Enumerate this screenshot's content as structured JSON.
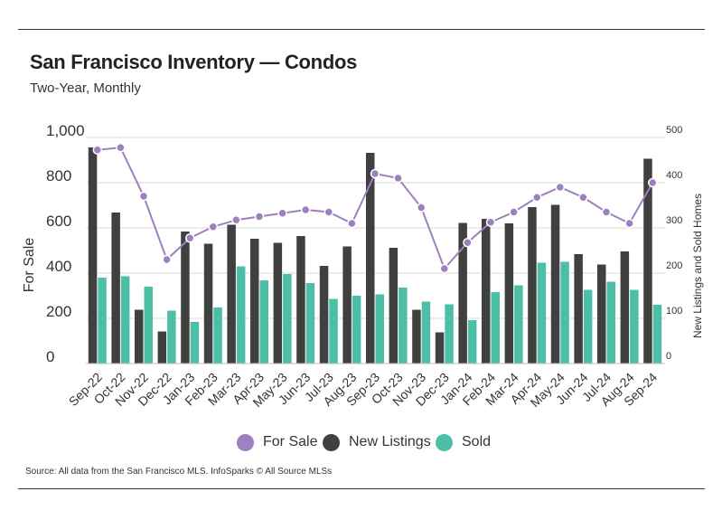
{
  "title": "San Francisco Inventory — Condos",
  "subtitle": "Two-Year, Monthly",
  "source": "Source:  All data from the San Francisco MLS. InfoSparks © All Source MLSs",
  "colors": {
    "for_sale": "#9d80bd",
    "new_listings": "#404040",
    "sold": "#4cbfa6"
  },
  "legend": {
    "for_sale": "For Sale",
    "new_listings": "New Listings",
    "sold": "Sold"
  },
  "chart_data": {
    "type": "bar",
    "categories": [
      "Sep-22",
      "Oct-22",
      "Nov-22",
      "Dec-22",
      "Jan-23",
      "Feb-23",
      "Mar-23",
      "Apr-23",
      "May-23",
      "Jun-23",
      "Jul-23",
      "Aug-23",
      "Sep-23",
      "Oct-23",
      "Nov-23",
      "Dec-23",
      "Jan-24",
      "Feb-24",
      "Mar-24",
      "Apr-24",
      "May-24",
      "Jun-24",
      "Jul-24",
      "Aug-24",
      "Sep-24"
    ],
    "ylabel": "For Sale",
    "y2label": "New Listings and Sold Homes",
    "ylim": [
      0,
      1000
    ],
    "y2lim": [
      0,
      500
    ],
    "yticks": [
      "0",
      "200",
      "400",
      "600",
      "800",
      "1,000"
    ],
    "y2ticks": [
      "0",
      "100",
      "200",
      "300",
      "400",
      "500"
    ],
    "gridlines": true,
    "legend_position": "bottom",
    "series": [
      {
        "name": "For Sale",
        "type": "line",
        "axis": "left",
        "values": [
          945,
          955,
          740,
          460,
          555,
          605,
          635,
          650,
          665,
          680,
          670,
          620,
          840,
          820,
          690,
          420,
          535,
          625,
          670,
          735,
          780,
          735,
          670,
          620,
          800
        ]
      },
      {
        "name": "New Listings",
        "type": "bar",
        "axis": "right",
        "values": [
          478,
          334,
          119,
          71,
          292,
          265,
          307,
          276,
          267,
          282,
          216,
          259,
          466,
          256,
          119,
          69,
          311,
          320,
          310,
          346,
          351,
          242,
          219,
          248,
          453
        ]
      },
      {
        "name": "Sold",
        "type": "bar",
        "axis": "right",
        "values": [
          190,
          193,
          170,
          117,
          92,
          124,
          215,
          184,
          198,
          178,
          143,
          150,
          153,
          168,
          137,
          131,
          96,
          158,
          173,
          223,
          225,
          163,
          181,
          163,
          130
        ]
      }
    ]
  }
}
